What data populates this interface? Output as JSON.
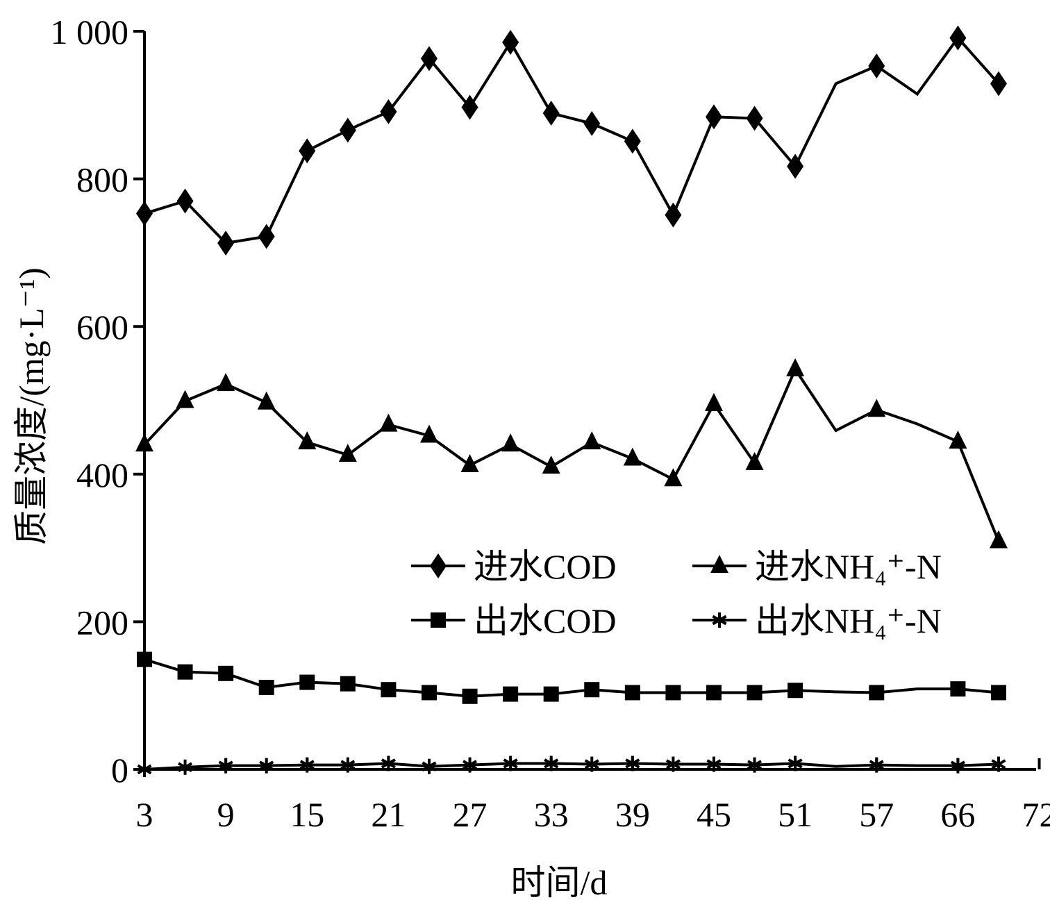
{
  "chart_data": {
    "type": "line",
    "xlabel": "时间/d",
    "ylabel": "质量浓度/(mg·L⁻¹)",
    "ylim": [
      0,
      1000
    ],
    "yticks": [
      "0",
      "200",
      "400",
      "600",
      "800",
      "1 000"
    ],
    "ytick_values": [
      0,
      200,
      400,
      600,
      800,
      1000
    ],
    "xtick_labels": [
      "3",
      "9",
      "15",
      "21",
      "27",
      "33",
      "39",
      "45",
      "51",
      "57",
      "66",
      "72"
    ],
    "grid": false,
    "legend_position": "center-right",
    "series": [
      {
        "name": "进水COD",
        "marker": "diamond",
        "values": [
          753,
          770,
          713,
          722,
          838,
          866,
          891,
          963,
          897,
          985,
          889,
          875,
          851,
          751,
          884,
          882,
          817,
          929,
          953,
          915,
          991,
          929
        ]
      },
      {
        "name": "进水NH₄⁺-N",
        "marker": "triangle",
        "values": [
          440,
          499,
          522,
          497,
          443,
          426,
          467,
          452,
          412,
          440,
          410,
          443,
          421,
          393,
          495,
          415,
          542,
          459,
          487,
          468,
          444,
          309
        ]
      },
      {
        "name": "出水COD",
        "marker": "square",
        "values": [
          149,
          132,
          130,
          111,
          118,
          116,
          108,
          104,
          99,
          102,
          102,
          108,
          104,
          104,
          104,
          104,
          107,
          105,
          104,
          109,
          109,
          104
        ]
      },
      {
        "name": "出水NH₄⁺-N",
        "marker": "asterisk",
        "values": [
          0,
          3,
          5,
          5,
          6,
          6,
          8,
          4,
          6,
          8,
          8,
          7,
          8,
          7,
          7,
          6,
          8,
          4,
          6,
          5,
          5,
          7
        ]
      }
    ],
    "marker_hidden_indices": [
      17,
      19
    ],
    "color": "#000000"
  }
}
